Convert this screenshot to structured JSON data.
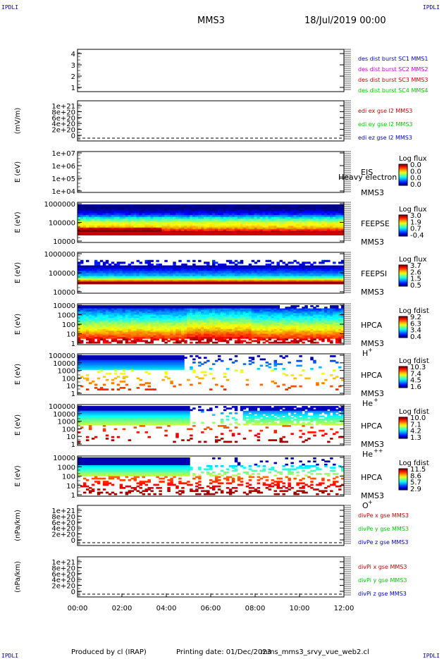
{
  "corner_label": "IPDLI",
  "header": {
    "title": "MMS3",
    "date": "18/Jul/2019 00:00"
  },
  "footer": {
    "produced_by": "Produced by cl (IRAP)",
    "printing_date": "Printing date: 01/Dec/2023",
    "file": "mms_mms3_srvy_vue_web2.cl"
  },
  "colors": {
    "mms1": "#0000cc",
    "mms2": "#cc00cc",
    "mms3": "#cc0000",
    "mms4": "#00cc00",
    "x": "#cc0000",
    "y": "#00cc00",
    "z": "#0000cc"
  },
  "chart_data": [
    {
      "type": "line",
      "id": "des",
      "ylabel": "",
      "yticks": [
        "4",
        "3",
        "2",
        "1"
      ],
      "legend": [
        {
          "text": "des dist burst SC1 MMS1",
          "color": "mms1"
        },
        {
          "text": "des dist burst SC2 MMS2",
          "color": "mms2"
        },
        {
          "text": "des dist burst SC3 MMS3",
          "color": "mms3"
        },
        {
          "text": "des dist burst SC4 MMS4",
          "color": "mms4"
        }
      ],
      "series": []
    },
    {
      "type": "line",
      "id": "edi",
      "ylabel": "(mV/m)",
      "yticks": [
        "1e+21",
        "8e+20",
        "6e+20",
        "4e+20",
        "2e+20",
        "0"
      ],
      "legend": [
        {
          "text": "edi ex gse l2 MMS3",
          "color": "x"
        },
        {
          "text": "edi ey gse l2 MMS3",
          "color": "y"
        },
        {
          "text": "edi ez gse l2 MMS3",
          "color": "z"
        }
      ],
      "series": []
    },
    {
      "type": "heatmap",
      "id": "eis",
      "ylabel": "E (eV)",
      "yticks": [
        "1e+07",
        "1e+06",
        "1e+05",
        "1e+04"
      ],
      "labels": [
        "EIS",
        "MMS3"
      ],
      "overlay": "Heavy electron to",
      "cbar_title": "Log flux",
      "cbar_ticks": [
        "0.0",
        "0.0",
        "0.0",
        "0.0"
      ],
      "fill": []
    },
    {
      "type": "heatmap",
      "id": "feepse",
      "ylabel": "E (eV)",
      "yticks": [
        "1000000",
        "100000",
        "10000"
      ],
      "labels": [
        "FEEPSE",
        "MMS3"
      ],
      "cbar_title": "Log flux",
      "cbar_ticks": [
        "3.0",
        "1.9",
        "0.7",
        "-0.4"
      ],
      "fill": [
        0.0,
        0.0,
        0.0,
        0.05,
        0.1,
        0.15,
        0.25,
        0.35,
        0.45,
        0.55,
        0.6,
        0.62,
        0.68,
        0.75,
        0.85,
        0.95,
        1.0
      ]
    },
    {
      "type": "heatmap",
      "id": "feepsi",
      "ylabel": "E (eV)",
      "yticks": [
        "1000000",
        "100000",
        "10000"
      ],
      "labels": [
        "FEEPSI",
        "MMS3"
      ],
      "cbar_title": "Log flux",
      "cbar_ticks": [
        "3.7",
        "2.6",
        "1.5",
        "0.5"
      ],
      "fill": [
        -1,
        -1,
        -1,
        -1,
        -1,
        -1,
        0.05,
        0.1,
        0.15,
        0.2,
        0.25,
        0.3,
        0.4,
        0.6,
        0.75,
        0.95,
        -1
      ]
    },
    {
      "type": "heatmap",
      "id": "hpca_h",
      "ylabel": "E (eV)",
      "yticks": [
        "10000",
        "1000",
        "100",
        "10",
        "1"
      ],
      "labels": [
        "HPCA",
        "MMS3"
      ],
      "species": "H",
      "charge": "+",
      "cbar_title": "Log fdist",
      "cbar_ticks": [
        "9.2",
        "6.3",
        "3.4",
        "0.4"
      ],
      "fill": []
    },
    {
      "type": "heatmap",
      "id": "hpca_he",
      "ylabel": "E (eV)",
      "yticks": [
        "100000",
        "10000",
        "1000",
        "100",
        "10",
        "1"
      ],
      "labels": [
        "HPCA",
        "MMS3"
      ],
      "species": "He",
      "charge": "+",
      "cbar_title": "Log fdist",
      "cbar_ticks": [
        "10.3",
        "7.4",
        "4.5",
        "1.6"
      ],
      "fill": []
    },
    {
      "type": "heatmap",
      "id": "hpca_hepp",
      "ylabel": "E (eV)",
      "yticks": [
        "100000",
        "10000",
        "1000",
        "100",
        "10",
        "1"
      ],
      "labels": [
        "HPCA",
        "MMS3"
      ],
      "species": "He",
      "charge": "++",
      "cbar_title": "Log fdist",
      "cbar_ticks": [
        "10.0",
        "7.1",
        "4.2",
        "1.3"
      ],
      "fill": []
    },
    {
      "type": "heatmap",
      "id": "hpca_o",
      "ylabel": "E (eV)",
      "yticks": [
        "10000",
        "1000",
        "100",
        "10",
        "1"
      ],
      "labels": [
        "HPCA",
        "MMS3"
      ],
      "species": "O",
      "charge": "+",
      "cbar_title": "Log fdist",
      "cbar_ticks": [
        "11.5",
        "8.6",
        "5.7",
        "2.9"
      ],
      "fill": []
    },
    {
      "type": "line",
      "id": "divpe",
      "ylabel": "(nPa/km)",
      "yticks": [
        "1e+21",
        "8e+20",
        "6e+20",
        "4e+20",
        "2e+20",
        "0"
      ],
      "legend": [
        {
          "text": "divPe x gse MMS3",
          "color": "x"
        },
        {
          "text": "divPe y gse MMS3",
          "color": "y"
        },
        {
          "text": "divPe z gse MMS3",
          "color": "z"
        }
      ],
      "series": []
    },
    {
      "type": "line",
      "id": "divpi",
      "ylabel": "(nPa/km)",
      "yticks": [
        "1e+21",
        "8e+20",
        "6e+20",
        "4e+20",
        "2e+20",
        "0"
      ],
      "legend": [
        {
          "text": "divPi x gse MMS3",
          "color": "x"
        },
        {
          "text": "divPi y gse MMS3",
          "color": "y"
        },
        {
          "text": "divPi z gse MMS3",
          "color": "z"
        }
      ],
      "series": []
    }
  ],
  "time_axis": {
    "ticks": [
      "00:00",
      "02:00",
      "04:00",
      "06:00",
      "08:00",
      "10:00",
      "12:00"
    ]
  }
}
